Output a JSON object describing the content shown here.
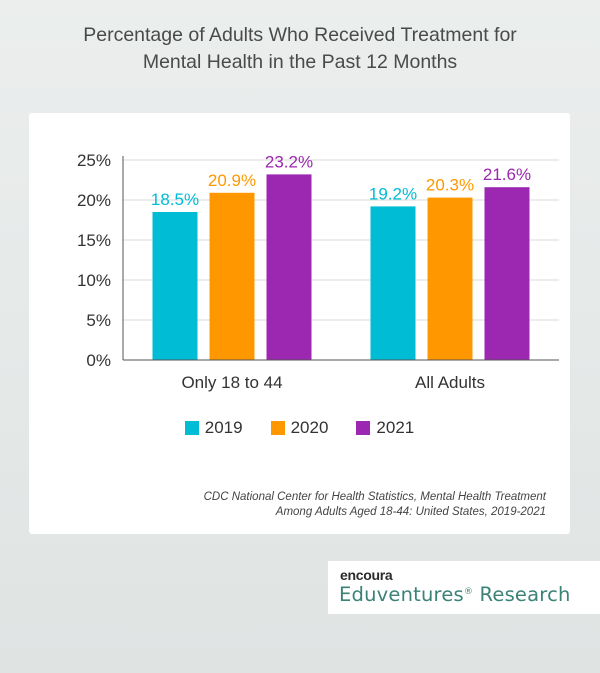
{
  "title": {
    "line1": "Percentage of Adults Who Received Treatment for",
    "line2": "Mental Health in the Past 12 Months"
  },
  "chart_data": {
    "type": "bar",
    "categories": [
      "Only 18 to 44",
      "All Adults"
    ],
    "series": [
      {
        "name": "2019",
        "color": "#00bcd4",
        "values": [
          18.5,
          19.2
        ],
        "labels": [
          "18.5%",
          "19.2%"
        ]
      },
      {
        "name": "2020",
        "color": "#ff9800",
        "values": [
          20.9,
          20.3
        ],
        "labels": [
          "20.9%",
          "20.3%"
        ]
      },
      {
        "name": "2021",
        "color": "#9c27b0",
        "values": [
          23.2,
          21.6
        ],
        "labels": [
          "23.2%",
          "21.6%"
        ]
      }
    ],
    "ylim": [
      0,
      25
    ],
    "yticks": [
      0,
      5,
      10,
      15,
      20,
      25
    ],
    "ytick_labels": [
      "0%",
      "5%",
      "10%",
      "15%",
      "20%",
      "25%"
    ],
    "grid": true,
    "legend_position": "bottom"
  },
  "source": {
    "line1": "CDC National Center for Health Statistics, Mental Health Treatment",
    "line2": "Among Adults Aged 18-44: United States, 2019-2021"
  },
  "brand": {
    "top": "encoura",
    "name": "Eduventures",
    "reg": "®",
    "suffix": " Research"
  }
}
